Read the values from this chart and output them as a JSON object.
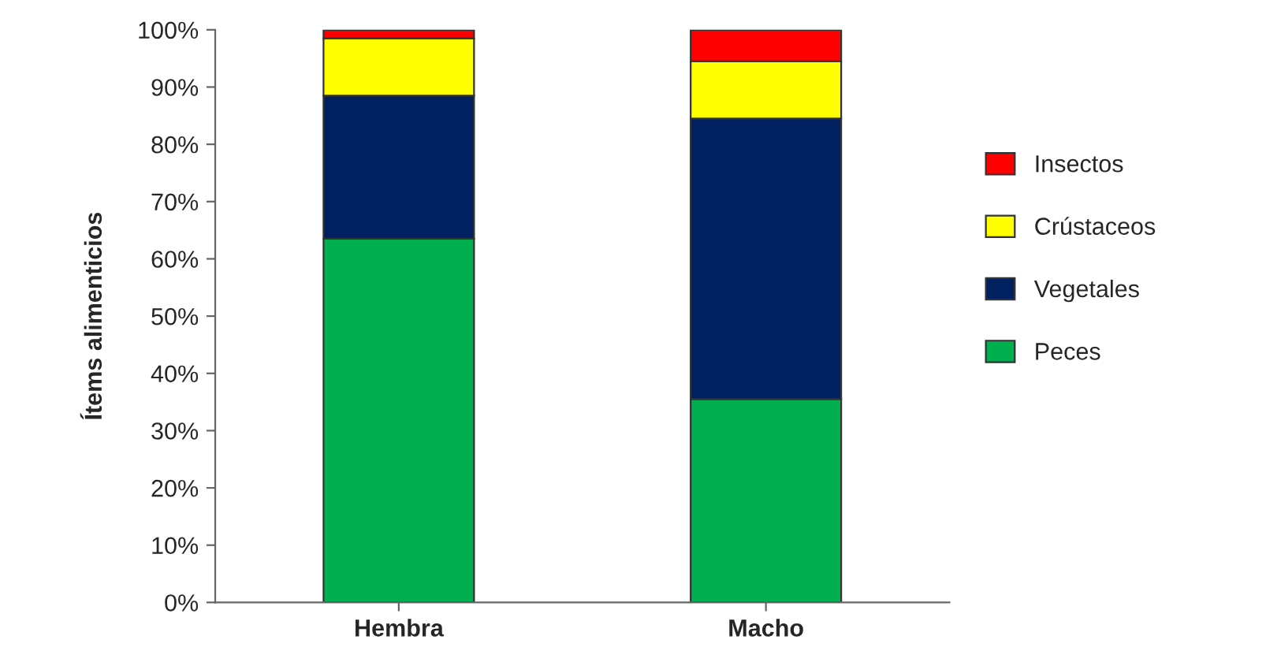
{
  "chart_data": {
    "type": "bar",
    "stacked": true,
    "ylabel": "Ítems alimenticios",
    "categories": [
      "Hembra",
      "Macho"
    ],
    "series": [
      {
        "name": "Peces",
        "color": "#00b050",
        "values": [
          63.5,
          35.5
        ]
      },
      {
        "name": "Vegetales",
        "color": "#002060",
        "values": [
          25,
          49
        ]
      },
      {
        "name": "Crústaceos",
        "color": "#ffff00",
        "values": [
          10,
          10
        ]
      },
      {
        "name": "Insectos",
        "color": "#ff0000",
        "values": [
          1.5,
          5.5
        ]
      }
    ],
    "ylim": [
      0,
      100
    ],
    "yticks": [
      {
        "value": 0,
        "label": "0%"
      },
      {
        "value": 10,
        "label": "10%"
      },
      {
        "value": 20,
        "label": "20%"
      },
      {
        "value": 30,
        "label": "30%"
      },
      {
        "value": 40,
        "label": "40%"
      },
      {
        "value": 50,
        "label": "50%"
      },
      {
        "value": 60,
        "label": "60%"
      },
      {
        "value": 70,
        "label": "70%"
      },
      {
        "value": 80,
        "label": "80%"
      },
      {
        "value": 90,
        "label": "90%"
      },
      {
        "value": 100,
        "label": "100%"
      }
    ],
    "grid": false,
    "legend": "right"
  }
}
